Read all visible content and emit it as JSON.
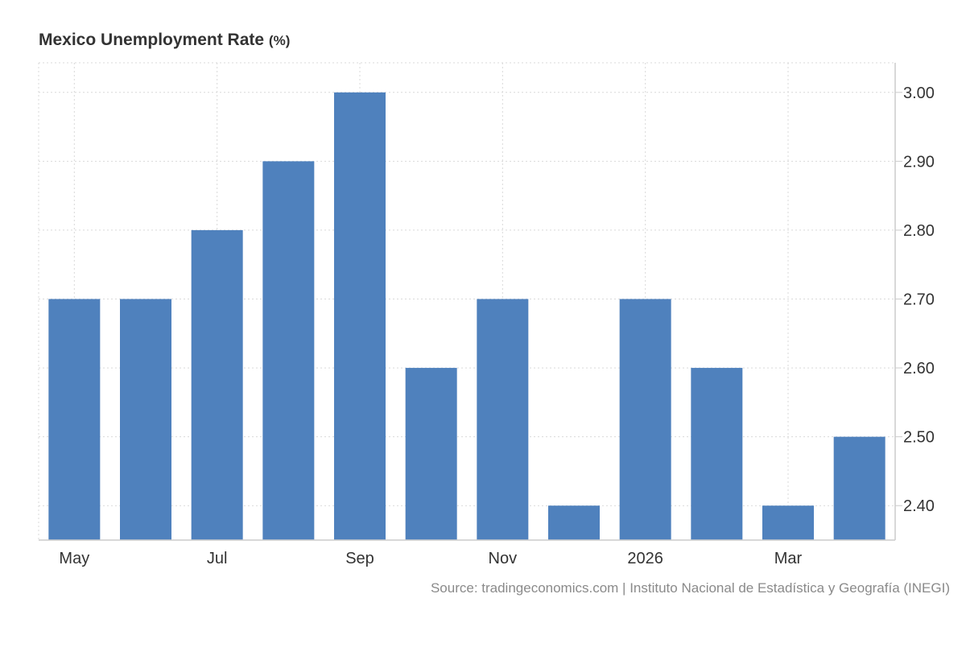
{
  "chart_data": {
    "type": "bar",
    "title": "Mexico Unemployment Rate",
    "unit": "(%)",
    "categories": [
      "2025-05",
      "2025-06",
      "2025-07",
      "2025-08",
      "2025-09",
      "2025-10",
      "2025-11",
      "2025-12",
      "2026-01",
      "2026-02",
      "2026-03",
      "2026-04"
    ],
    "values": [
      2.7,
      2.7,
      2.8,
      2.9,
      3.0,
      2.6,
      2.7,
      2.4,
      2.7,
      2.6,
      2.4,
      2.5
    ],
    "x_tick_labels": [
      {
        "category": "2025-05",
        "label": "May"
      },
      {
        "category": "2025-07",
        "label": "Jul"
      },
      {
        "category": "2025-09",
        "label": "Sep"
      },
      {
        "category": "2025-11",
        "label": "Nov"
      },
      {
        "category": "2026-01",
        "label": "2026"
      },
      {
        "category": "2026-03",
        "label": "Mar"
      }
    ],
    "y_ticks": [
      "2.40",
      "2.50",
      "2.60",
      "2.70",
      "2.80",
      "2.90",
      "3.00"
    ],
    "ylim": [
      2.35,
      3.043
    ],
    "y_axis_side": "right",
    "grid": true,
    "bar_color": "#4f81bd",
    "grid_color": "#d9d9d9",
    "axis_color": "#cccccc"
  },
  "source": "Source: tradingeconomics.com | Instituto Nacional de Estadística y Geografía (INEGI)"
}
